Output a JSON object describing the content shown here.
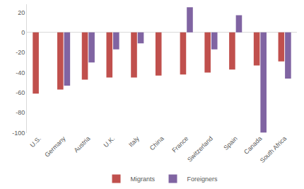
{
  "chart_data": {
    "type": "bar",
    "categories": [
      "U.S.",
      "Germany",
      "Austria",
      "U.K.",
      "Italy",
      "China",
      "France",
      "Switzerland",
      "Spain",
      "Canada",
      "South Africa"
    ],
    "series": [
      {
        "name": "Migrants",
        "color": "#c0504d",
        "values": [
          -61,
          -57,
          -47,
          -45,
          -45,
          -43,
          -42,
          -40,
          -37,
          -33,
          -29
        ]
      },
      {
        "name": "Foreigners",
        "color": "#8064a2",
        "values": [
          null,
          -53,
          -30,
          -17,
          -11,
          null,
          25,
          -17,
          17,
          -100,
          -46
        ]
      }
    ],
    "ylim": [
      -100,
      28
    ],
    "yticks": [
      -100,
      -80,
      -60,
      -40,
      -20,
      0,
      20
    ],
    "grid": false,
    "legend": "bottom"
  }
}
